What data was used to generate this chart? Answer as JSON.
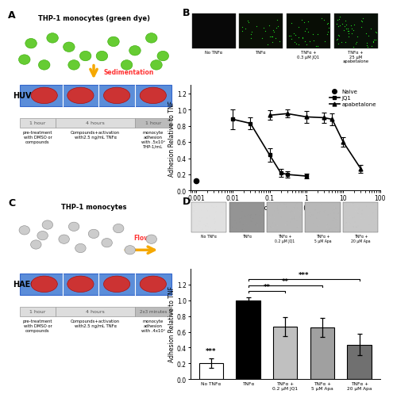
{
  "line_chart": {
    "jq1_x": [
      0.01,
      0.03,
      0.1,
      0.2,
      0.3,
      1.0
    ],
    "jq1_y": [
      0.88,
      0.83,
      0.44,
      0.22,
      0.2,
      0.18
    ],
    "jq1_yerr": [
      0.12,
      0.07,
      0.08,
      0.05,
      0.04,
      0.03
    ],
    "apa_x": [
      0.1,
      0.3,
      1.0,
      3.0,
      5.0,
      10.0,
      30.0
    ],
    "apa_y": [
      0.93,
      0.95,
      0.91,
      0.9,
      0.88,
      0.6,
      0.27
    ],
    "apa_yerr": [
      0.06,
      0.05,
      0.07,
      0.06,
      0.07,
      0.06,
      0.05
    ],
    "naive_x": [
      0.001
    ],
    "naive_y": [
      0.12
    ],
    "xlabel": "Concentration (μM)",
    "ylabel": "Adhesion Relative to TNF",
    "ylim": [
      0.0,
      1.3
    ],
    "yticks": [
      0.0,
      0.2,
      0.4,
      0.6,
      0.8,
      1.0,
      1.2
    ],
    "legend_labels": [
      "Naive",
      "JQ1",
      "apabetalone"
    ]
  },
  "bar_chart": {
    "categories": [
      "No TNFα",
      "TNFα",
      "TNFα +\n0.2 μM JQ1",
      "TNFα +\n5 μM Apa",
      "TNFα +\n20 μM Apa"
    ],
    "values": [
      0.2,
      1.0,
      0.67,
      0.66,
      0.44
    ],
    "yerr": [
      0.06,
      0.04,
      0.12,
      0.12,
      0.14
    ],
    "colors": [
      "white",
      "black",
      "#c0c0c0",
      "#a0a0a0",
      "#707070"
    ],
    "ylabel": "Adhesion Relative to TNF",
    "ylim": [
      0.0,
      1.4
    ],
    "yticks": [
      0.0,
      0.2,
      0.4,
      0.6,
      0.8,
      1.0,
      1.2
    ]
  },
  "panel_b_labels": [
    "No TNFα",
    "TNFα",
    "TNFα +\n0.3 μM JQ1",
    "TNFα +\n25 μM\napabetalone"
  ],
  "panel_d_labels": [
    "No TNFα",
    "TNFα",
    "TNFα +\n0.2 μM JQ1",
    "TNFα +\n5 μM Apa",
    "TNFα +\n20 μM Apa"
  ],
  "huvec_color": "#5b8dd9",
  "cell_color": "#cc3333",
  "monocyte_green": "#66cc33",
  "monocyte_gray": "#aaaaaa",
  "arrow_color": "#f5a800",
  "flow_color": "#f5a800",
  "sedimentation_color": "#ff3333",
  "flow_text_color": "#ff3333"
}
